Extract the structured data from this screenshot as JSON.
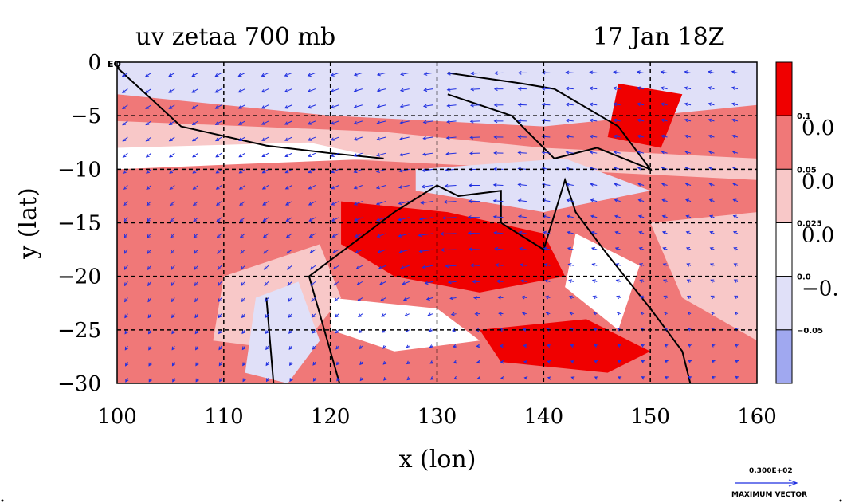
{
  "chart_data": {
    "type": "heatmap",
    "title_left": "uv zetaa 700 mb",
    "title_right": "17 Jan 18Z",
    "xlabel": "x (lon)",
    "ylabel": "y (lat)",
    "xlim": [
      100,
      160
    ],
    "ylim": [
      -30,
      0
    ],
    "x_ticks": [
      "100",
      "110",
      "120",
      "130",
      "140",
      "150",
      "160"
    ],
    "y_ticks": [
      "0",
      "−5",
      "−10",
      "−15",
      "−20",
      "−25",
      "−30"
    ],
    "x_tick_values": [
      100,
      110,
      120,
      130,
      140,
      150,
      160
    ],
    "y_tick_values": [
      0,
      -5,
      -10,
      -15,
      -20,
      -25,
      -30
    ],
    "eq_label": "EQ",
    "grid": true,
    "contour_levels": [
      -0.05,
      0.0,
      0.025,
      0.05,
      0.1
    ],
    "colorbar": {
      "labels_small": [
        "0.1",
        "0.05",
        "0.025",
        "0.0",
        "−0.05"
      ],
      "labels_large": [
        "0.0",
        "0.0",
        "0.0",
        "−0."
      ],
      "colors": [
        "#f00000",
        "#f07878",
        "#f8c8c8",
        "#ffffff",
        "#e0e0f8",
        "#a0a8f0"
      ]
    },
    "vector_reference": {
      "magnitude": "0.300E+02",
      "caption": "MAXIMUM VECTOR"
    },
    "vector_color": "#1f2fe0",
    "coastline_color": "#000000"
  }
}
